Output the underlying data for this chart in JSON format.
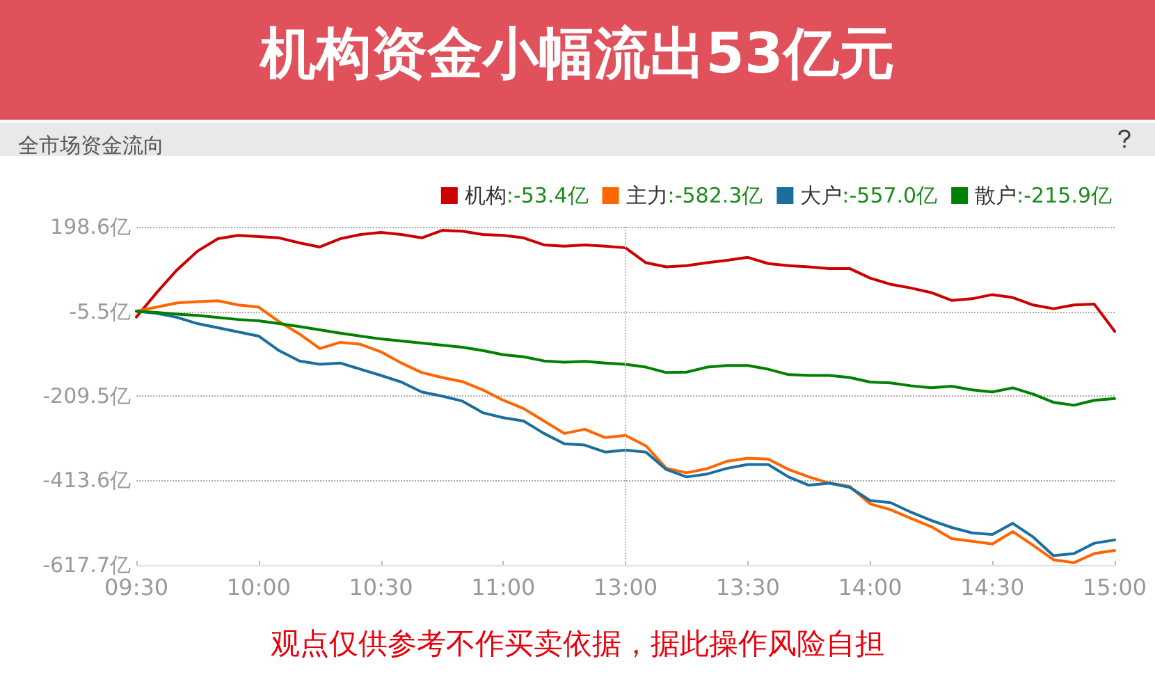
{
  "chart_data": {
    "type": "line",
    "title": "机构资金小幅流出53亿元",
    "subtitle": "全市场资金流向",
    "categories": [
      "09:30",
      null,
      null,
      null,
      null,
      null,
      "10:00",
      null,
      null,
      null,
      null,
      null,
      "10:30",
      null,
      null,
      null,
      null,
      null,
      "11:00",
      null,
      null,
      null,
      null,
      null,
      "13:00",
      null,
      null,
      null,
      null,
      null,
      "13:30",
      null,
      null,
      null,
      null,
      null,
      "14:00",
      null,
      null,
      null,
      null,
      null,
      "14:30",
      null,
      null,
      null,
      null,
      null,
      "15:00"
    ],
    "series": [
      {
        "name": "机构:-53.4亿",
        "color": "#cc0000",
        "values": [
          -19,
          40,
          95,
          140,
          170,
          178,
          175,
          172,
          160,
          150,
          170,
          180,
          185,
          180,
          172,
          190,
          188,
          180,
          178,
          172,
          155,
          152,
          155,
          152,
          148,
          112,
          102,
          105,
          112,
          118,
          125,
          110,
          105,
          102,
          98,
          98,
          75,
          60,
          51,
          40,
          21,
          25,
          35,
          28,
          10,
          1,
          10,
          12,
          -53.4
        ]
      },
      {
        "name": "主力:-582.3亿",
        "color": "#ff6600",
        "values": [
          -5,
          5,
          15,
          18,
          20,
          10,
          5,
          -30,
          -60,
          -95,
          -80,
          -85,
          -103,
          -130,
          -153,
          -165,
          -175,
          -195,
          -220,
          -240,
          -270,
          -300,
          -290,
          -310,
          -305,
          -330,
          -384,
          -395,
          -385,
          -367,
          -360,
          -362,
          -387,
          -405,
          -420,
          -428,
          -470,
          -484,
          -505,
          -525,
          -554,
          -560,
          -567,
          -537,
          -570,
          -605,
          -612,
          -590,
          -582.3
        ]
      },
      {
        "name": "大户:-557.0亿",
        "color": "#1a6f9f",
        "values": [
          -5,
          -10,
          -20,
          -35,
          -45,
          -55,
          -65,
          -100,
          -125,
          -133,
          -130,
          -145,
          -160,
          -176,
          -200,
          -210,
          -222,
          -250,
          -262,
          -270,
          -300,
          -325,
          -328,
          -345,
          -340,
          -345,
          -387,
          -405,
          -398,
          -384,
          -375,
          -375,
          -405,
          -425,
          -420,
          -430,
          -462,
          -467,
          -490,
          -510,
          -527,
          -540,
          -544,
          -517,
          -550,
          -595,
          -590,
          -565,
          -557.0
        ]
      },
      {
        "name": "散户:-215.9亿",
        "color": "#008000",
        "values": [
          -5,
          -8,
          -12,
          -15,
          -20,
          -25,
          -28,
          -35,
          -42,
          -50,
          -58,
          -65,
          -72,
          -77,
          -82,
          -87,
          -92,
          -100,
          -110,
          -115,
          -125,
          -128,
          -126,
          -130,
          -133,
          -140,
          -153,
          -152,
          -140,
          -136,
          -136,
          -145,
          -158,
          -160,
          -160,
          -165,
          -176,
          -178,
          -185,
          -190,
          -186,
          -195,
          -200,
          -190,
          -205,
          -225,
          -232,
          -220,
          -215.9
        ]
      }
    ],
    "ylim": [
      -617.7,
      198.6
    ],
    "yticks": [
      {
        "value": -617.7,
        "label": "-617.7亿"
      },
      {
        "value": -413.6,
        "label": "-413.6亿"
      },
      {
        "value": -209.5,
        "label": "-209.5亿"
      },
      {
        "value": -5.5,
        "label": "-5.5亿"
      },
      {
        "value": 198.6,
        "label": "198.6亿"
      }
    ],
    "ref_lines": [
      {
        "axis": "x",
        "value": "13:00",
        "line_style": "dotted",
        "color": "#bbbbbb"
      }
    ],
    "grid": "y",
    "legend": "top right",
    "marker": "none",
    "line_style": "solid",
    "annotations": [
      "观点仅供参考不作买卖依据，据此操作风险自担"
    ]
  }
}
